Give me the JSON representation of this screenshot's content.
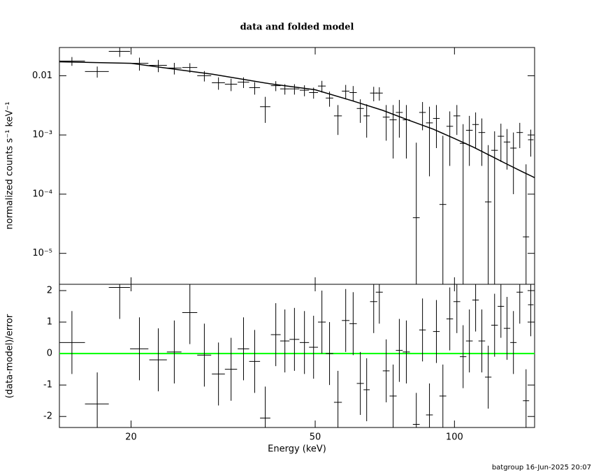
{
  "chart_data": [
    {
      "type": "errorbar",
      "title": "data and folded model",
      "ylabel": "normalized counts s⁻¹ keV⁻¹",
      "xscale": "log",
      "yscale": "log",
      "xlim": [
        14,
        149
      ],
      "ylim": [
        3e-06,
        0.03
      ],
      "yticks": [
        0.01,
        {
          "value": 0.001,
          "label": "10⁻³"
        },
        {
          "value": 0.0001,
          "label": "10⁻⁴"
        },
        {
          "value": 1e-05,
          "label": "10⁻⁵"
        }
      ],
      "color": "#000000",
      "energy": [
        14.9,
        16.9,
        18.9,
        20.85,
        22.9,
        24.8,
        26.8,
        28.8,
        30.9,
        32.9,
        35.0,
        37.0,
        39.0,
        41.1,
        43.0,
        45.1,
        47.4,
        49.6,
        51.7,
        53.7,
        56.0,
        58.2,
        60.4,
        62.6,
        64.6,
        66.9,
        68.8,
        71.2,
        73.7,
        76.0,
        78.7,
        82.7,
        85.3,
        88.3,
        91.4,
        94.4,
        97.7,
        101.2,
        104.4,
        107.7,
        111.1,
        114.6,
        118.3,
        122.1,
        126.0,
        129.9,
        134.1,
        138.4,
        142.8,
        146.2
      ],
      "energy_err": [
        1.0,
        1.0,
        1.0,
        0.95,
        1.0,
        0.9,
        1.0,
        1.0,
        1.0,
        1.0,
        1.0,
        1.0,
        1.0,
        1.0,
        1.0,
        1.1,
        1.1,
        1.1,
        1.0,
        1.0,
        1.1,
        1.1,
        1.1,
        1.1,
        1.0,
        1.2,
        1.2,
        1.2,
        1.3,
        1.3,
        1.4,
        1.4,
        1.4,
        1.5,
        1.5,
        1.6,
        1.6,
        1.7,
        1.7,
        1.8,
        1.8,
        1.9,
        1.9,
        2.0,
        2.0,
        2.1,
        2.1,
        2.2,
        2.2,
        2.0
      ],
      "values": [
        0.0177,
        0.0118,
        0.0258,
        0.0162,
        0.015,
        0.0135,
        0.0138,
        0.01,
        0.0076,
        0.0072,
        0.0078,
        0.0063,
        0.003,
        0.0068,
        0.006,
        0.006,
        0.0057,
        0.0052,
        0.0067,
        0.0042,
        0.0021,
        0.0055,
        0.0052,
        0.0028,
        0.0021,
        0.0051,
        0.0051,
        0.002,
        0.0018,
        0.0024,
        0.0018,
        4e-05,
        0.0024,
        0.0016,
        0.0019,
        6.7e-05,
        0.0014,
        0.0021,
        0.00072,
        0.0012,
        0.0015,
        0.0011,
        7.4e-05,
        0.00055,
        0.00095,
        0.00076,
        0.0006,
        0.0011,
        1.9e-05,
        0.00083
      ],
      "errors": [
        0.003,
        0.0025,
        0.005,
        0.004,
        0.0035,
        0.003,
        0.0025,
        0.002,
        0.0018,
        0.0017,
        0.0016,
        0.0015,
        0.0014,
        0.0013,
        0.0012,
        0.0012,
        0.0012,
        0.0011,
        0.0015,
        0.0012,
        0.0011,
        0.0015,
        0.0015,
        0.0012,
        0.0012,
        0.0014,
        0.0013,
        0.0012,
        0.0014,
        0.0015,
        0.0014,
        0.0007,
        0.0012,
        0.0014,
        0.0013,
        0.0009,
        0.0011,
        0.0011,
        0.0008,
        0.0009,
        0.0009,
        0.0008,
        0.0006,
        0.0006,
        0.0006,
        0.0005,
        0.0005,
        0.0005,
        0.0003,
        0.0004
      ],
      "model": {
        "energy": [
          14,
          20,
          30,
          40,
          50,
          60,
          70,
          80,
          90,
          100,
          110,
          120,
          130,
          140,
          149
        ],
        "values": [
          0.0172,
          0.0162,
          0.0106,
          0.0073,
          0.0058,
          0.0038,
          0.0026,
          0.00175,
          0.00125,
          0.00087,
          0.00062,
          0.00044,
          0.00032,
          0.00024,
          0.00019
        ]
      }
    },
    {
      "type": "errorbar",
      "xlabel": "Energy (keV)",
      "ylabel": "(data-model)/error",
      "xscale": "log",
      "xlim": [
        14,
        149
      ],
      "ylim": [
        -2.35,
        2.2
      ],
      "xticks": [
        20,
        50,
        100
      ],
      "yticks": [
        -2,
        -1,
        0,
        1,
        2
      ],
      "color": "#000000",
      "reference_line": {
        "value": 0,
        "color": "#00ff00"
      },
      "energy": [
        14.9,
        16.9,
        18.9,
        20.85,
        22.9,
        24.8,
        26.8,
        28.8,
        30.9,
        32.9,
        35.0,
        37.0,
        39.0,
        41.1,
        43.0,
        45.1,
        47.4,
        49.6,
        51.7,
        53.7,
        56.0,
        58.2,
        60.4,
        62.6,
        64.6,
        66.9,
        68.8,
        71.2,
        73.7,
        76.0,
        78.7,
        82.7,
        85.3,
        88.3,
        91.4,
        94.4,
        97.7,
        101.2,
        104.4,
        107.7,
        111.1,
        114.6,
        118.3,
        122.1,
        126.0,
        129.9,
        134.1,
        138.4,
        142.8,
        146.2
      ],
      "energy_err": [
        1.0,
        1.0,
        1.0,
        0.95,
        1.0,
        0.9,
        1.0,
        1.0,
        1.0,
        1.0,
        1.0,
        1.0,
        1.0,
        1.0,
        1.0,
        1.1,
        1.1,
        1.1,
        1.0,
        1.0,
        1.1,
        1.1,
        1.1,
        1.1,
        1.0,
        1.2,
        1.2,
        1.2,
        1.3,
        1.3,
        1.4,
        1.4,
        1.4,
        1.5,
        1.5,
        1.6,
        1.6,
        1.7,
        1.7,
        1.8,
        1.8,
        1.9,
        1.9,
        2.0,
        2.0,
        2.1,
        2.1,
        2.2,
        2.2,
        2.0
      ],
      "values": [
        0.35,
        -1.6,
        2.1,
        0.15,
        -0.2,
        0.05,
        1.3,
        -0.05,
        -0.65,
        -0.5,
        0.15,
        -0.25,
        -2.05,
        0.6,
        0.4,
        0.45,
        0.35,
        0.2,
        1.0,
        0.0,
        -1.55,
        1.05,
        0.95,
        -0.95,
        -1.15,
        1.65,
        1.95,
        -0.55,
        -1.35,
        0.1,
        0.05,
        -2.25,
        0.75,
        -1.95,
        0.7,
        -1.35,
        1.1,
        1.65,
        -0.1,
        0.4,
        1.7,
        0.4,
        -0.75,
        0.9,
        1.5,
        0.8,
        0.35,
        1.95,
        -1.5,
        1.55
      ],
      "error": 1
    }
  ],
  "footer": "batgroup 16-Jun-2025 20:07"
}
